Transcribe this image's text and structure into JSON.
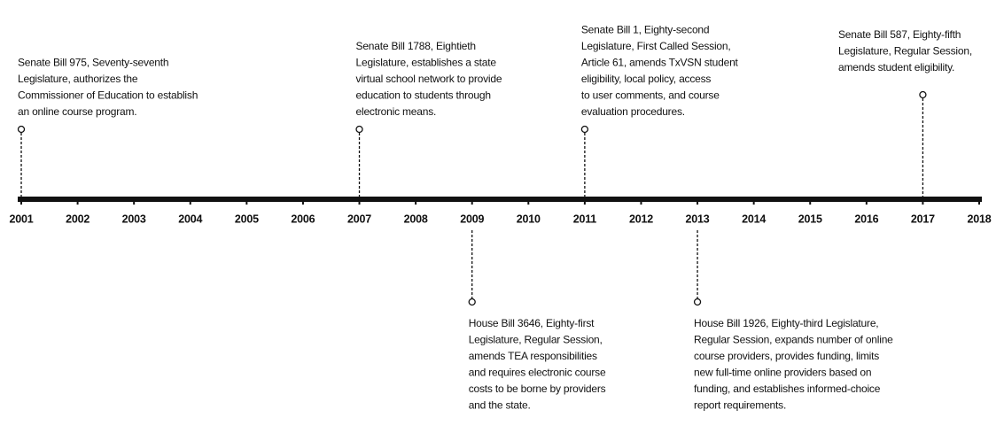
{
  "timeline": {
    "years": [
      {
        "label": "2001",
        "event": [
          "Senate Bill 975, Seventy-seventh",
          "Legislature, authorizes the",
          "Commissioner of Education to establish",
          "an online course program."
        ]
      },
      {
        "label": "2002"
      },
      {
        "label": "2003"
      },
      {
        "label": "2004"
      },
      {
        "label": "2005"
      },
      {
        "label": "2006"
      },
      {
        "label": "2007",
        "event": [
          "Senate Bill 1788, Eightieth",
          "Legislature, establishes a state",
          "virtual school network to provide",
          "education to students through",
          "electronic means."
        ]
      },
      {
        "label": "2008"
      },
      {
        "label": "2009",
        "event": [
          "House Bill 3646, Eighty-first",
          "Legislature, Regular Session,",
          "amends TEA responsibilities",
          "and requires electronic course",
          "costs to be borne by providers",
          "and the state."
        ]
      },
      {
        "label": "2010"
      },
      {
        "label": "2011",
        "event": [
          "Senate Bill 1, Eighty-second",
          "Legislature, First Called Session,",
          "Article 61, amends TxVSN student",
          "eligibility, local policy, access",
          "to user comments, and course",
          "evaluation procedures."
        ]
      },
      {
        "label": "2012"
      },
      {
        "label": "2013",
        "event": [
          "House Bill 1926, Eighty-third Legislature,",
          "Regular Session, expands number of online",
          "course providers, provides funding, limits",
          "new full-time online providers based on",
          "funding, and establishes informed-choice",
          "report requirements."
        ]
      },
      {
        "label": "2014"
      },
      {
        "label": "2015"
      },
      {
        "label": "2016"
      },
      {
        "label": "2017",
        "event": [
          "Senate Bill 587, Eighty-fifth",
          "Legislature, Regular Session,",
          "amends student eligibility."
        ]
      },
      {
        "label": "2018"
      }
    ]
  }
}
